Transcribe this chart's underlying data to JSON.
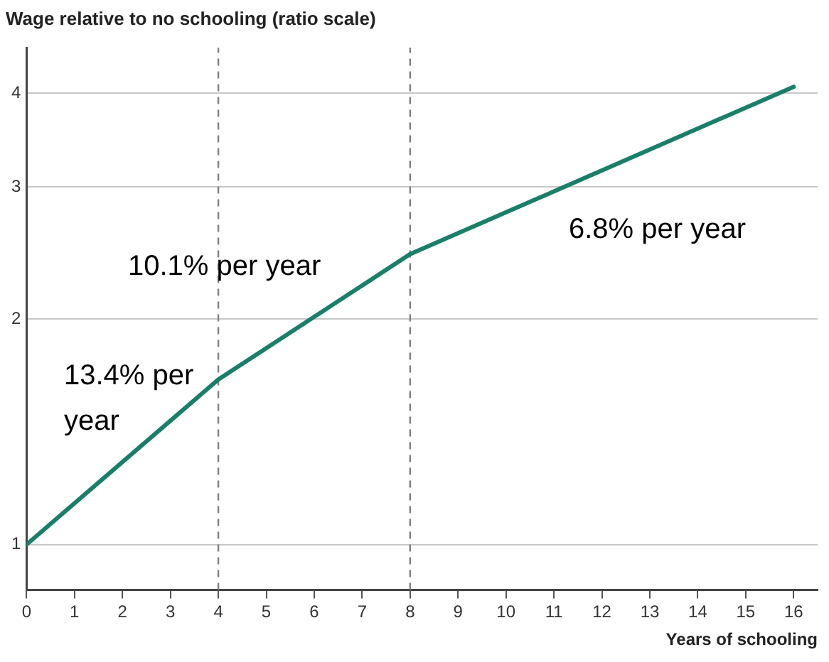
{
  "chart_data": {
    "type": "line",
    "title": "Wage relative to no schooling (ratio scale)",
    "xlabel": "Years of schooling",
    "x": [
      0,
      4,
      8,
      16
    ],
    "series": [
      {
        "color": "#1a7f68",
        "values": [
          1,
          1.66,
          2.44,
          4.08
        ]
      }
    ],
    "xlim": [
      0,
      16.5
    ],
    "xticks": [
      0,
      1,
      2,
      3,
      4,
      5,
      6,
      7,
      8,
      9,
      10,
      11,
      12,
      13,
      14,
      15,
      16
    ],
    "ylim": [
      0.87,
      4.6
    ],
    "yticks": [
      1,
      2,
      3,
      4
    ],
    "log": "y",
    "grid": "y",
    "legend": false,
    "marker": "none",
    "line_style": "solid",
    "ref_lines": [
      {
        "axis": "x",
        "value": 4,
        "color": "#808080",
        "line_style": "dashed"
      },
      {
        "axis": "x",
        "value": 8,
        "color": "#808080",
        "line_style": "dashed"
      }
    ],
    "annotations": [
      "13.4% per year",
      "10.1% per year",
      "6.8% per year"
    ]
  }
}
